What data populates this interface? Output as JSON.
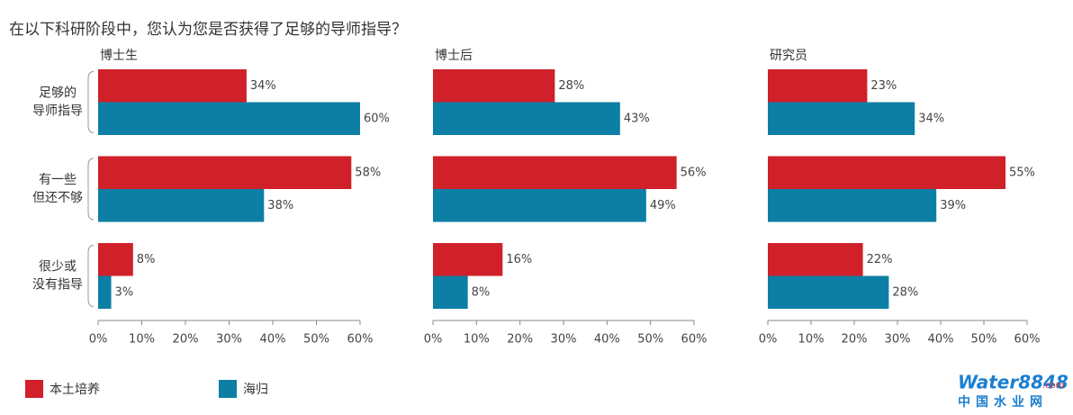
{
  "title": "在以下科研阶段中，您认为您是否获得了足够的导师指导？",
  "chart_data": [
    {
      "type": "hbar",
      "title": "博士生",
      "categories": [
        [
          "足够的",
          "导师指导"
        ],
        [
          "有一些",
          "但还不够"
        ],
        [
          "很少或",
          "没有指导"
        ]
      ],
      "series": [
        {
          "name": "本土培养",
          "color": "#d0202a",
          "values": [
            34,
            58,
            8
          ],
          "value_labels": [
            "34%",
            "58%",
            "8%"
          ]
        },
        {
          "name": "海归",
          "color": "#0d7fa5",
          "values": [
            60,
            38,
            3
          ],
          "value_labels": [
            "60%",
            "38%",
            "3%"
          ]
        }
      ],
      "xlim": [
        0,
        60
      ],
      "xticks": [
        {
          "value": 0,
          "label": "0%"
        },
        {
          "value": 10,
          "label": "10%"
        },
        {
          "value": 20,
          "label": "20%"
        },
        {
          "value": 30,
          "label": "30%"
        },
        {
          "value": 40,
          "label": "40%"
        },
        {
          "value": 50,
          "label": "50%"
        },
        {
          "value": 60,
          "label": "60%"
        }
      ]
    },
    {
      "type": "hbar",
      "title": "博士后",
      "series": [
        {
          "color": "#d0202a",
          "values": [
            28,
            56,
            16
          ],
          "value_labels": [
            "28%",
            "56%",
            "16%"
          ]
        },
        {
          "color": "#0d7fa5",
          "values": [
            43,
            49,
            8
          ],
          "value_labels": [
            "43%",
            "49%",
            "8%"
          ]
        }
      ],
      "xlim": [
        0,
        60
      ],
      "xticks": [
        {
          "value": 0,
          "label": "0%"
        },
        {
          "value": 10,
          "label": "10%"
        },
        {
          "value": 20,
          "label": "20%"
        },
        {
          "value": 30,
          "label": "30%"
        },
        {
          "value": 40,
          "label": "40%"
        },
        {
          "value": 50,
          "label": "50%"
        },
        {
          "value": 60,
          "label": "60%"
        }
      ]
    },
    {
      "type": "hbar",
      "title": "研究员",
      "series": [
        {
          "color": "#d0202a",
          "values": [
            23,
            55,
            22
          ],
          "value_labels": [
            "23%",
            "55%",
            "22%"
          ]
        },
        {
          "color": "#0d7fa5",
          "values": [
            34,
            39,
            28
          ],
          "value_labels": [
            "34%",
            "39%",
            "28%"
          ]
        }
      ],
      "xlim": [
        0,
        60
      ],
      "xticks": [
        {
          "value": 0,
          "label": "0%"
        },
        {
          "value": 10,
          "label": "10%"
        },
        {
          "value": 20,
          "label": "20%"
        },
        {
          "value": 30,
          "label": "30%"
        },
        {
          "value": 40,
          "label": "40%"
        },
        {
          "value": 50,
          "label": "50%"
        },
        {
          "value": 60,
          "label": "60%"
        }
      ]
    }
  ],
  "watermark": {
    "brand": "Water8848",
    "domain": ".com",
    "subtitle": "中国水业网"
  }
}
